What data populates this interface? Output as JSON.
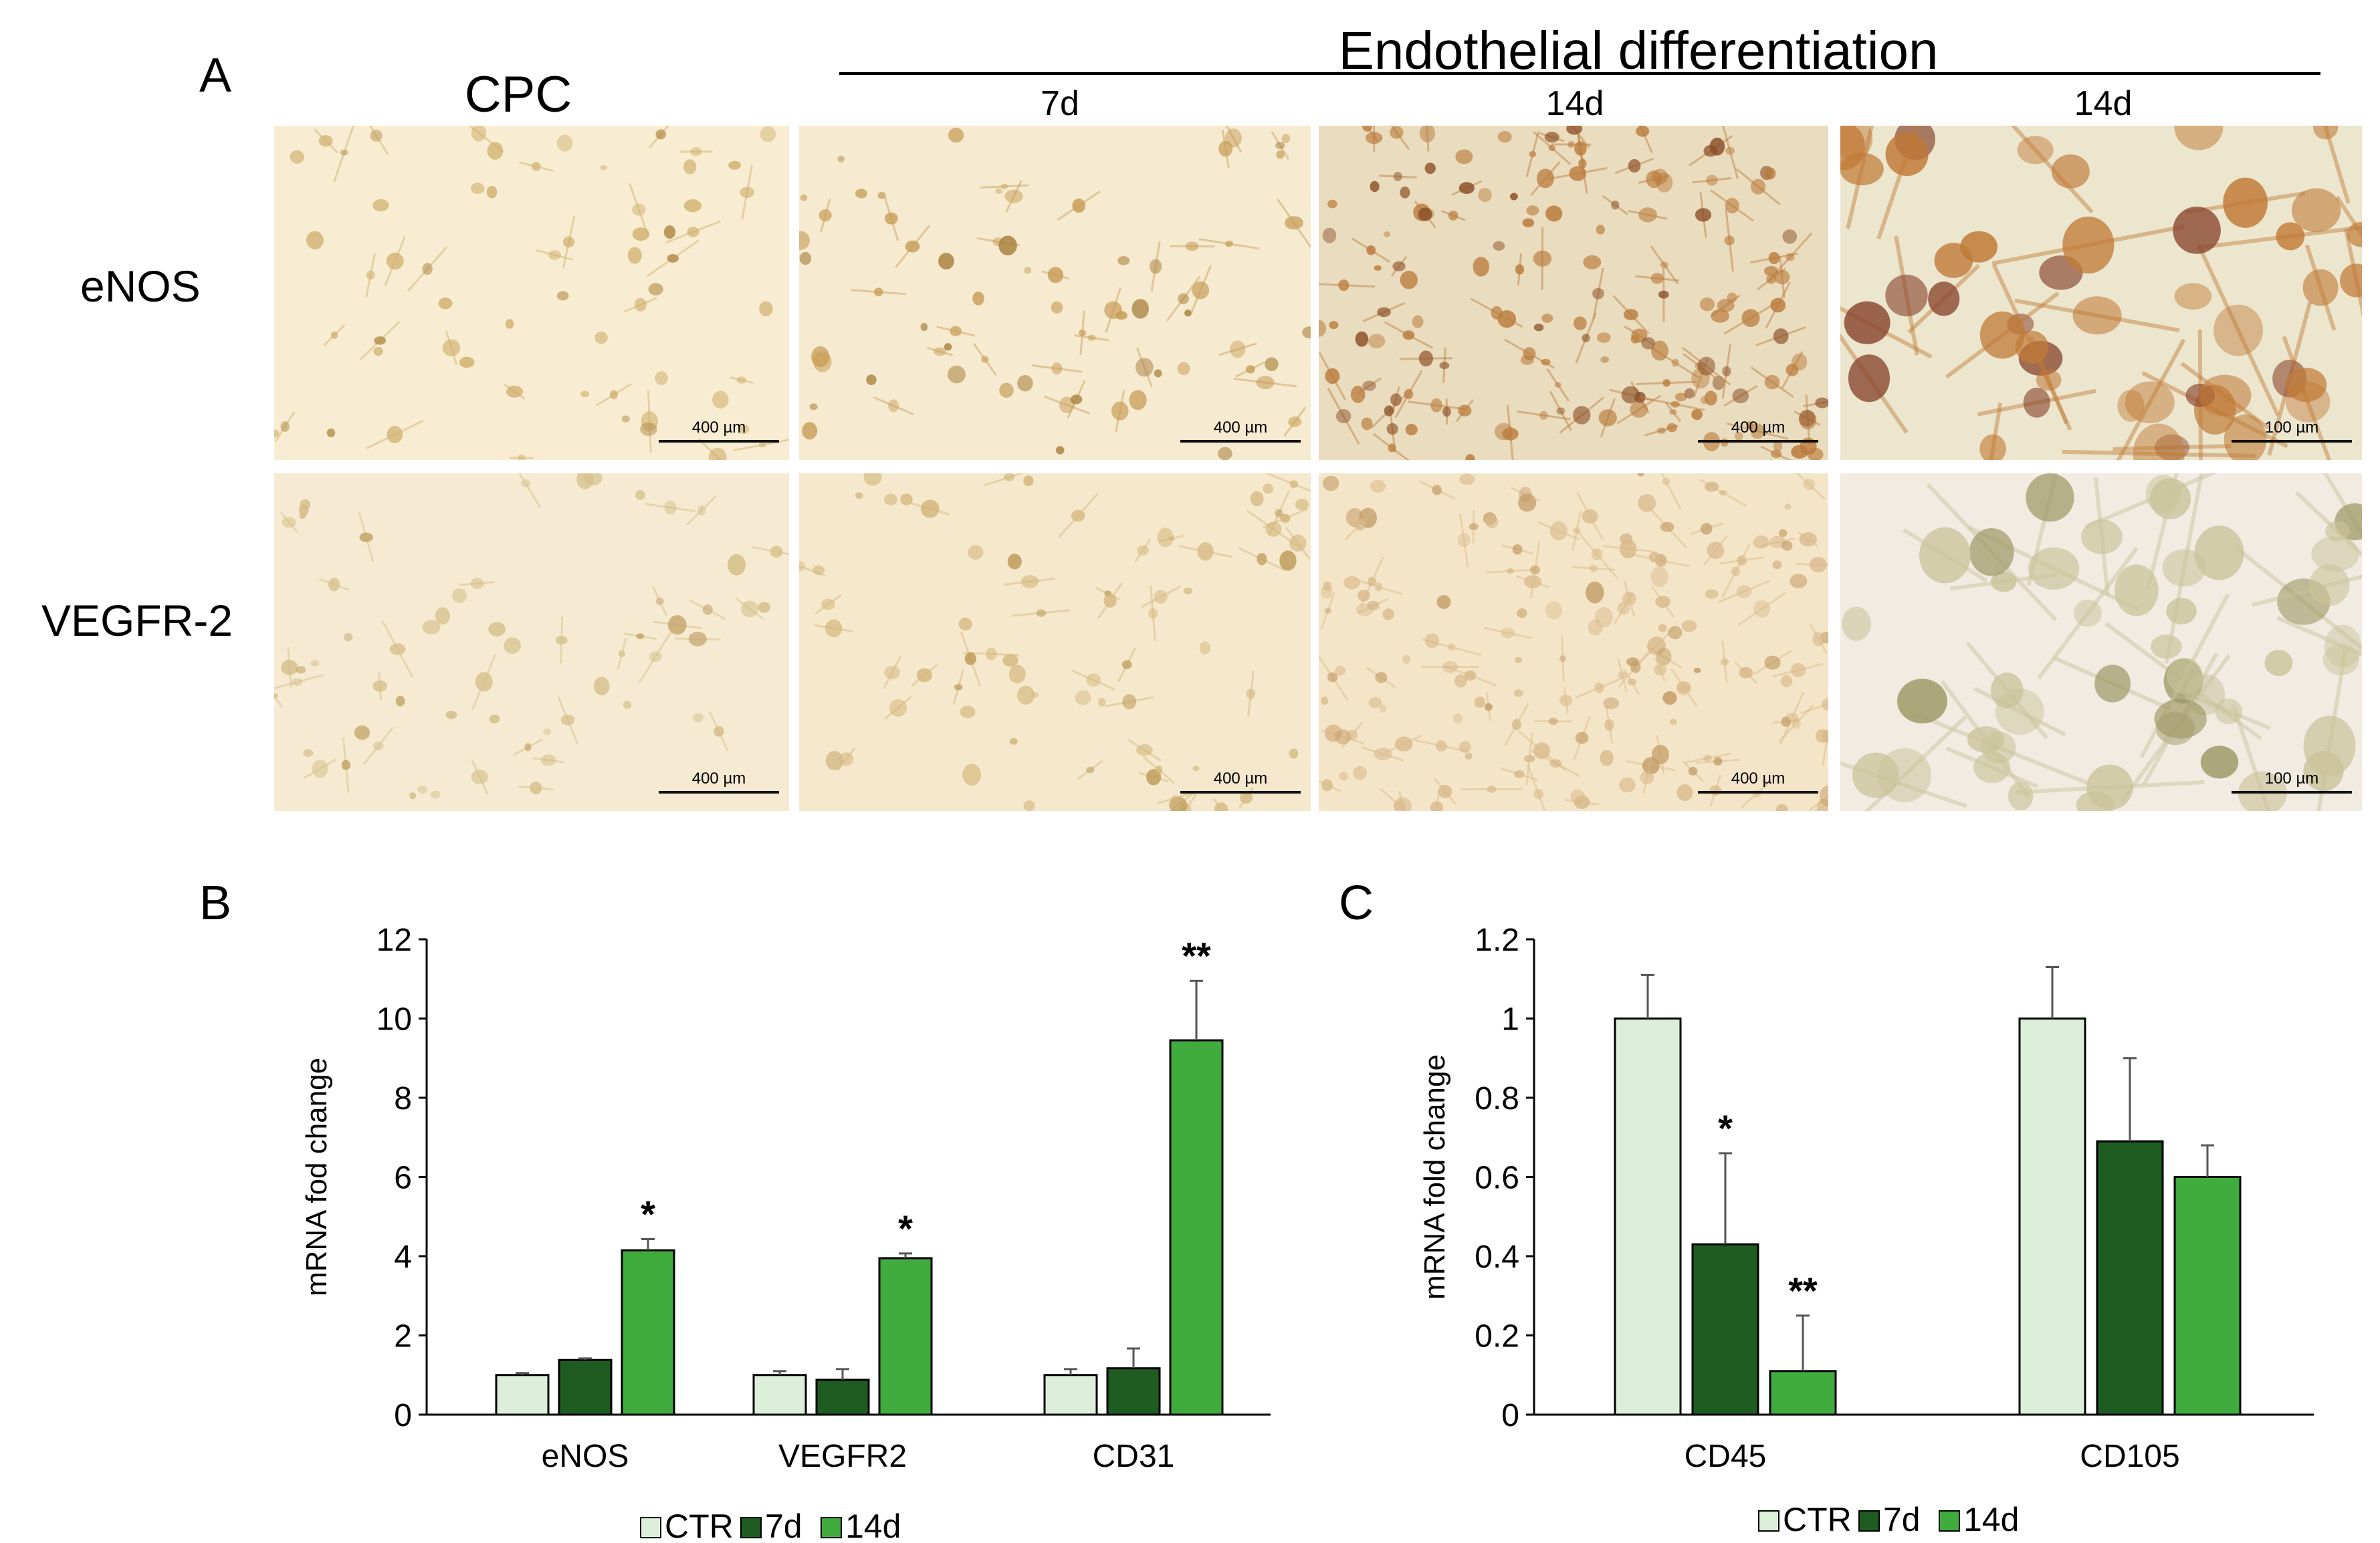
{
  "panel_a": {
    "letter": "A",
    "cpc_title": "CPC",
    "group_title": "Endothelial differentiation",
    "columns": [
      "7d",
      "14d",
      "14d"
    ],
    "rows": [
      "eNOS",
      "VEGFR-2"
    ],
    "scale_bars": [
      [
        "400 µm",
        "400 µm",
        "400 µm",
        "100 µm"
      ],
      [
        "400 µm",
        "400 µm",
        "400 µm",
        "100 µm"
      ]
    ],
    "colors": {
      "background": "#f7ecd2",
      "cell": "#c89a4a",
      "cell_dark": "#9a6a2c",
      "bright_bg": "#f2ead9"
    }
  },
  "panel_b": {
    "letter": "B",
    "chart_data": {
      "type": "bar",
      "ylabel": "mRNA fod change",
      "ylim": [
        0,
        12
      ],
      "yticks": [
        0,
        2,
        4,
        6,
        8,
        10,
        12
      ],
      "categories": [
        "eNOS",
        "VEGFR2",
        "CD31"
      ],
      "series": [
        {
          "name": "CTR",
          "color": "#dbefd9",
          "values": [
            1.0,
            1.0,
            1.0
          ],
          "errors": [
            0.05,
            0.1,
            0.15
          ]
        },
        {
          "name": "7d",
          "color": "#1e5c22",
          "values": [
            1.38,
            0.88,
            1.17
          ],
          "errors": [
            0.04,
            0.27,
            0.5
          ]
        },
        {
          "name": "14d",
          "color": "#3fac3d",
          "values": [
            4.15,
            3.95,
            9.45
          ],
          "errors": [
            0.28,
            0.12,
            1.5
          ]
        }
      ],
      "annotations": [
        {
          "category": 0,
          "series": 2,
          "text": "*"
        },
        {
          "category": 1,
          "series": 2,
          "text": "*"
        },
        {
          "category": 2,
          "series": 2,
          "text": "**"
        }
      ]
    }
  },
  "panel_c": {
    "letter": "C",
    "chart_data": {
      "type": "bar",
      "ylabel": "mRNA fold change",
      "ylim": [
        0,
        1.2
      ],
      "yticks": [
        "0",
        "0.2",
        "0.4",
        "0.6",
        "0.8",
        "1",
        "1.2"
      ],
      "categories": [
        "CD45",
        "CD105"
      ],
      "series": [
        {
          "name": "CTR",
          "color": "#dbefd9",
          "values": [
            1.0,
            1.0
          ],
          "errors": [
            0.11,
            0.13
          ]
        },
        {
          "name": "7d",
          "color": "#1e5c22",
          "values": [
            0.43,
            0.69
          ],
          "errors": [
            0.23,
            0.21
          ]
        },
        {
          "name": "14d",
          "color": "#3fac3d",
          "values": [
            0.11,
            0.6
          ],
          "errors": [
            0.14,
            0.08
          ]
        }
      ],
      "annotations": [
        {
          "category": 0,
          "series": 1,
          "text": "*"
        },
        {
          "category": 0,
          "series": 2,
          "text": "**"
        }
      ]
    }
  }
}
